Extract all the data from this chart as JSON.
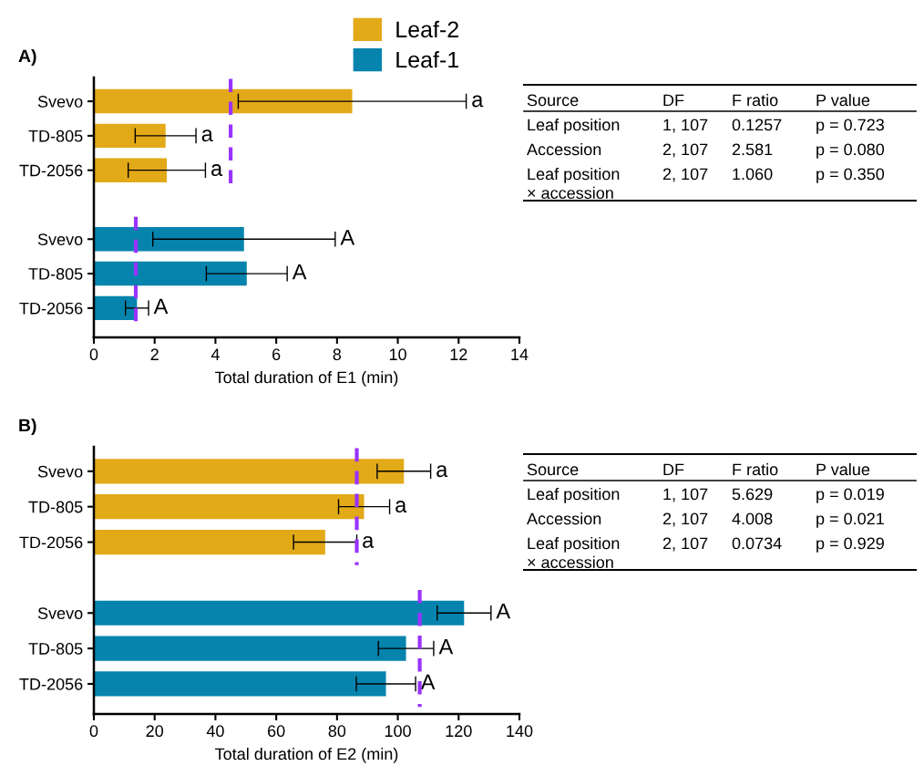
{
  "chart_data": [
    {
      "type": "bar",
      "orientation": "horizontal",
      "title": "A)",
      "xlabel": "Total duration of E1 (min)",
      "categories": [
        "Svevo",
        "TD-805",
        "TD-2056",
        null,
        "Svevo",
        "TD-805",
        "TD-2056"
      ],
      "series": [
        {
          "name": "Leaf-2",
          "color": "#e2a918",
          "values": [
            8.5,
            2.36,
            2.4,
            null,
            null,
            null,
            null
          ],
          "errors": [
            3.75,
            1.0,
            1.27,
            null,
            null,
            null,
            null
          ]
        },
        {
          "name": "Leaf-1",
          "color": "#0684ad",
          "values": [
            null,
            null,
            null,
            null,
            4.94,
            5.03,
            1.42
          ],
          "errors": [
            null,
            null,
            null,
            null,
            3.0,
            1.33,
            0.38
          ]
        }
      ],
      "xlim": [
        0,
        14
      ],
      "xticks": [
        0,
        2,
        4,
        6,
        8,
        10,
        12,
        14
      ],
      "ref_lines": [
        {
          "axis": "x",
          "value": 4.5,
          "color": "#9933ff",
          "line_style": "dashed"
        },
        {
          "axis": "x",
          "value": 1.38,
          "color": "#9933ff",
          "line_style": "dashed"
        }
      ],
      "legend": "top",
      "grid": false,
      "annotations": [
        "a",
        "a",
        "a",
        "A",
        "A",
        "A"
      ]
    },
    {
      "type": "other",
      "annotations": [
        "Source",
        "DF",
        "F ratio",
        "P value",
        "Leaf position",
        "1, 107",
        "0.1257",
        "p = 0.723",
        "Accession",
        "2, 107",
        "2.581",
        "p = 0.080",
        "Leaf position\n× accession",
        "2, 107",
        "1.060",
        "p = 0.350"
      ]
    },
    {
      "type": "bar",
      "orientation": "horizontal",
      "title": "B)",
      "xlabel": "Total duration of E2 (min)",
      "categories": [
        "Svevo",
        "TD-805",
        "TD-2056",
        null,
        "Svevo",
        "TD-805",
        "TD-2056"
      ],
      "series": [
        {
          "color": "#e2a918",
          "values": [
            102,
            88.9,
            76.1,
            null,
            null,
            null,
            null
          ],
          "errors": [
            8.8,
            8.4,
            10.4,
            null,
            null,
            null,
            null
          ]
        },
        {
          "color": "#0684ad",
          "values": [
            null,
            null,
            null,
            null,
            121.8,
            102.7,
            96.1
          ],
          "errors": [
            null,
            null,
            null,
            null,
            8.85,
            9.1,
            9.75
          ]
        }
      ],
      "xlim": [
        0,
        140
      ],
      "xticks": [
        0,
        20,
        40,
        60,
        80,
        100,
        120,
        140
      ],
      "ref_lines": [
        {
          "axis": "x",
          "value": 86.5,
          "color": "#9933ff",
          "line_style": "dashed"
        },
        {
          "axis": "x",
          "value": 107.2,
          "color": "#9933ff",
          "line_style": "dashed"
        }
      ],
      "grid": false,
      "annotations": [
        "a",
        "a",
        "a",
        "A",
        "A",
        "A"
      ]
    },
    {
      "type": "other",
      "annotations": [
        "Source",
        "DF",
        "F ratio",
        "P value",
        "Leaf position",
        "1, 107",
        "5.629",
        "p = 0.019",
        "Accession",
        "2, 107",
        "4.008",
        "p = 0.021",
        "Leaf position\n× accession",
        "2, 107",
        "0.0734",
        "p = 0.929"
      ]
    }
  ]
}
